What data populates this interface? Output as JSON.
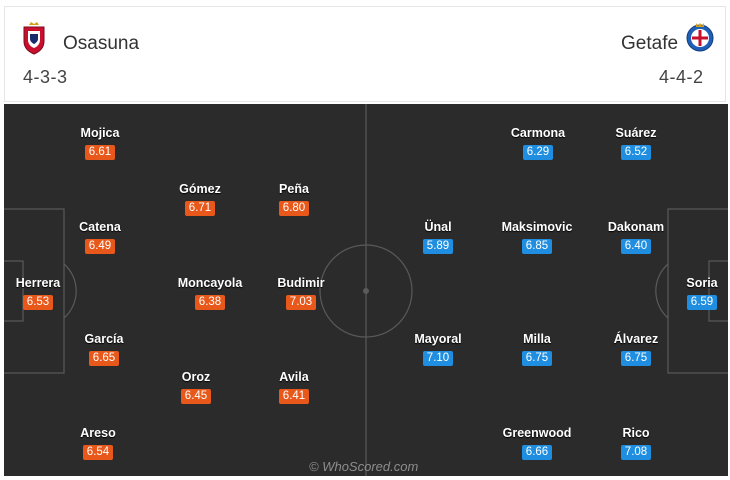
{
  "home": {
    "name": "Osasuna",
    "formation": "4-3-3",
    "color": "#e8581a",
    "crest_icon": "osasuna-crest-icon"
  },
  "away": {
    "name": "Getafe",
    "formation": "4-4-2",
    "color": "#1f8ee0",
    "crest_icon": "getafe-crest-icon"
  },
  "watermark": "© WhoScored.com",
  "home_players": [
    {
      "name": "Mojica",
      "rating": "6.61"
    },
    {
      "name": "Gómez",
      "rating": "6.71"
    },
    {
      "name": "Peña",
      "rating": "6.80"
    },
    {
      "name": "Catena",
      "rating": "6.49"
    },
    {
      "name": "Herrera",
      "rating": "6.53"
    },
    {
      "name": "Moncayola",
      "rating": "6.38"
    },
    {
      "name": "Budimir",
      "rating": "7.03"
    },
    {
      "name": "García",
      "rating": "6.65"
    },
    {
      "name": "Oroz",
      "rating": "6.45"
    },
    {
      "name": "Avila",
      "rating": "6.41"
    },
    {
      "name": "Areso",
      "rating": "6.54"
    }
  ],
  "away_players": [
    {
      "name": "Carmona",
      "rating": "6.29"
    },
    {
      "name": "Suárez",
      "rating": "6.52"
    },
    {
      "name": "Ünal",
      "rating": "5.89"
    },
    {
      "name": "Maksimovic",
      "rating": "6.85"
    },
    {
      "name": "Dakonam",
      "rating": "6.40"
    },
    {
      "name": "Soria",
      "rating": "6.59"
    },
    {
      "name": "Mayoral",
      "rating": "7.10"
    },
    {
      "name": "Milla",
      "rating": "6.75"
    },
    {
      "name": "Álvarez",
      "rating": "6.75"
    },
    {
      "name": "Greenwood",
      "rating": "6.66"
    },
    {
      "name": "Rico",
      "rating": "7.08"
    }
  ]
}
